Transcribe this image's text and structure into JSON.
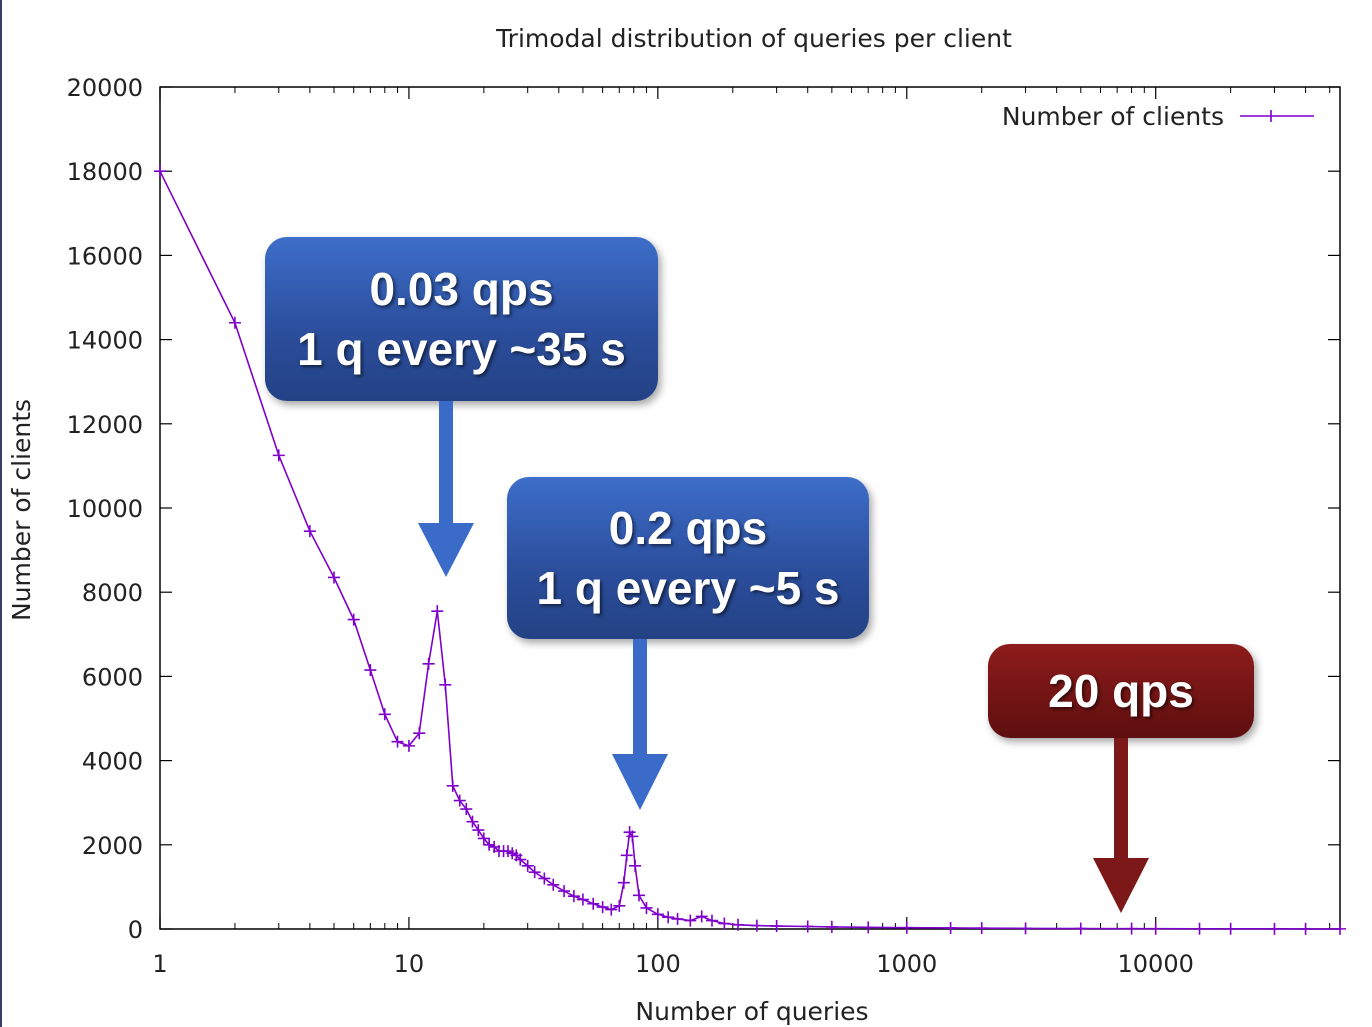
{
  "chart_data": {
    "type": "line",
    "title": "Trimodal distribution of queries per client",
    "xlabel": "Number of queries",
    "ylabel": "Number of clients",
    "x_scale": "log",
    "xlim": [
      1,
      55000
    ],
    "ylim": [
      0,
      20000
    ],
    "x_ticks": [
      1,
      10,
      100,
      1000,
      10000
    ],
    "x_tick_labels": [
      "1",
      "10",
      "100",
      "1000",
      "10000"
    ],
    "y_ticks": [
      0,
      2000,
      4000,
      6000,
      8000,
      10000,
      12000,
      14000,
      16000,
      18000,
      20000
    ],
    "y_tick_labels": [
      "0",
      "2000",
      "4000",
      "6000",
      "8000",
      "10000",
      "12000",
      "14000",
      "16000",
      "18000",
      "20000"
    ],
    "grid": false,
    "legend_position": "top-right",
    "series": [
      {
        "name": "Number of clients",
        "color": "#7f00cc",
        "marker": "plus",
        "points": [
          [
            1,
            18000
          ],
          [
            2,
            14400
          ],
          [
            3,
            11250
          ],
          [
            4,
            9450
          ],
          [
            5,
            8350
          ],
          [
            6,
            7350
          ],
          [
            7,
            6150
          ],
          [
            8,
            5100
          ],
          [
            9,
            4450
          ],
          [
            10,
            4350
          ],
          [
            11,
            4650
          ],
          [
            12,
            6300
          ],
          [
            13,
            7550
          ],
          [
            14,
            5800
          ],
          [
            15,
            3400
          ],
          [
            16,
            3050
          ],
          [
            17,
            2850
          ],
          [
            18,
            2550
          ],
          [
            19,
            2350
          ],
          [
            20,
            2150
          ],
          [
            21,
            2000
          ],
          [
            22,
            1950
          ],
          [
            23,
            1850
          ],
          [
            24,
            1850
          ],
          [
            25,
            1850
          ],
          [
            26,
            1800
          ],
          [
            27,
            1750
          ],
          [
            28,
            1650
          ],
          [
            30,
            1500
          ],
          [
            32,
            1350
          ],
          [
            35,
            1200
          ],
          [
            38,
            1050
          ],
          [
            42,
            900
          ],
          [
            46,
            780
          ],
          [
            50,
            700
          ],
          [
            55,
            600
          ],
          [
            60,
            520
          ],
          [
            65,
            460
          ],
          [
            70,
            550
          ],
          [
            73,
            1100
          ],
          [
            75,
            1750
          ],
          [
            77,
            2300
          ],
          [
            79,
            2200
          ],
          [
            81,
            1500
          ],
          [
            84,
            800
          ],
          [
            90,
            500
          ],
          [
            100,
            350
          ],
          [
            110,
            280
          ],
          [
            120,
            240
          ],
          [
            135,
            200
          ],
          [
            150,
            300
          ],
          [
            165,
            200
          ],
          [
            185,
            130
          ],
          [
            210,
            100
          ],
          [
            250,
            80
          ],
          [
            300,
            70
          ],
          [
            400,
            60
          ],
          [
            500,
            50
          ],
          [
            700,
            40
          ],
          [
            1000,
            30
          ],
          [
            1500,
            25
          ],
          [
            2000,
            20
          ],
          [
            3000,
            15
          ],
          [
            5000,
            10
          ],
          [
            8000,
            8
          ],
          [
            10000,
            6
          ],
          [
            15000,
            5
          ],
          [
            20000,
            5
          ],
          [
            30000,
            4
          ],
          [
            40000,
            3
          ],
          [
            55000,
            3
          ]
        ]
      }
    ]
  },
  "callouts": [
    {
      "line1": "0.03 qps",
      "line2": "1 q every ~35 s",
      "color": "#2f58ad"
    },
    {
      "line1": "0.2 qps",
      "line2": "1 q every ~5 s",
      "color": "#2f58ad"
    },
    {
      "line1": "20 qps",
      "line2": "",
      "color": "#7a1616"
    }
  ],
  "colors": {
    "series": "#7f00cc",
    "blue_arrow": "#3b6bc9",
    "red_arrow": "#7d1818"
  }
}
